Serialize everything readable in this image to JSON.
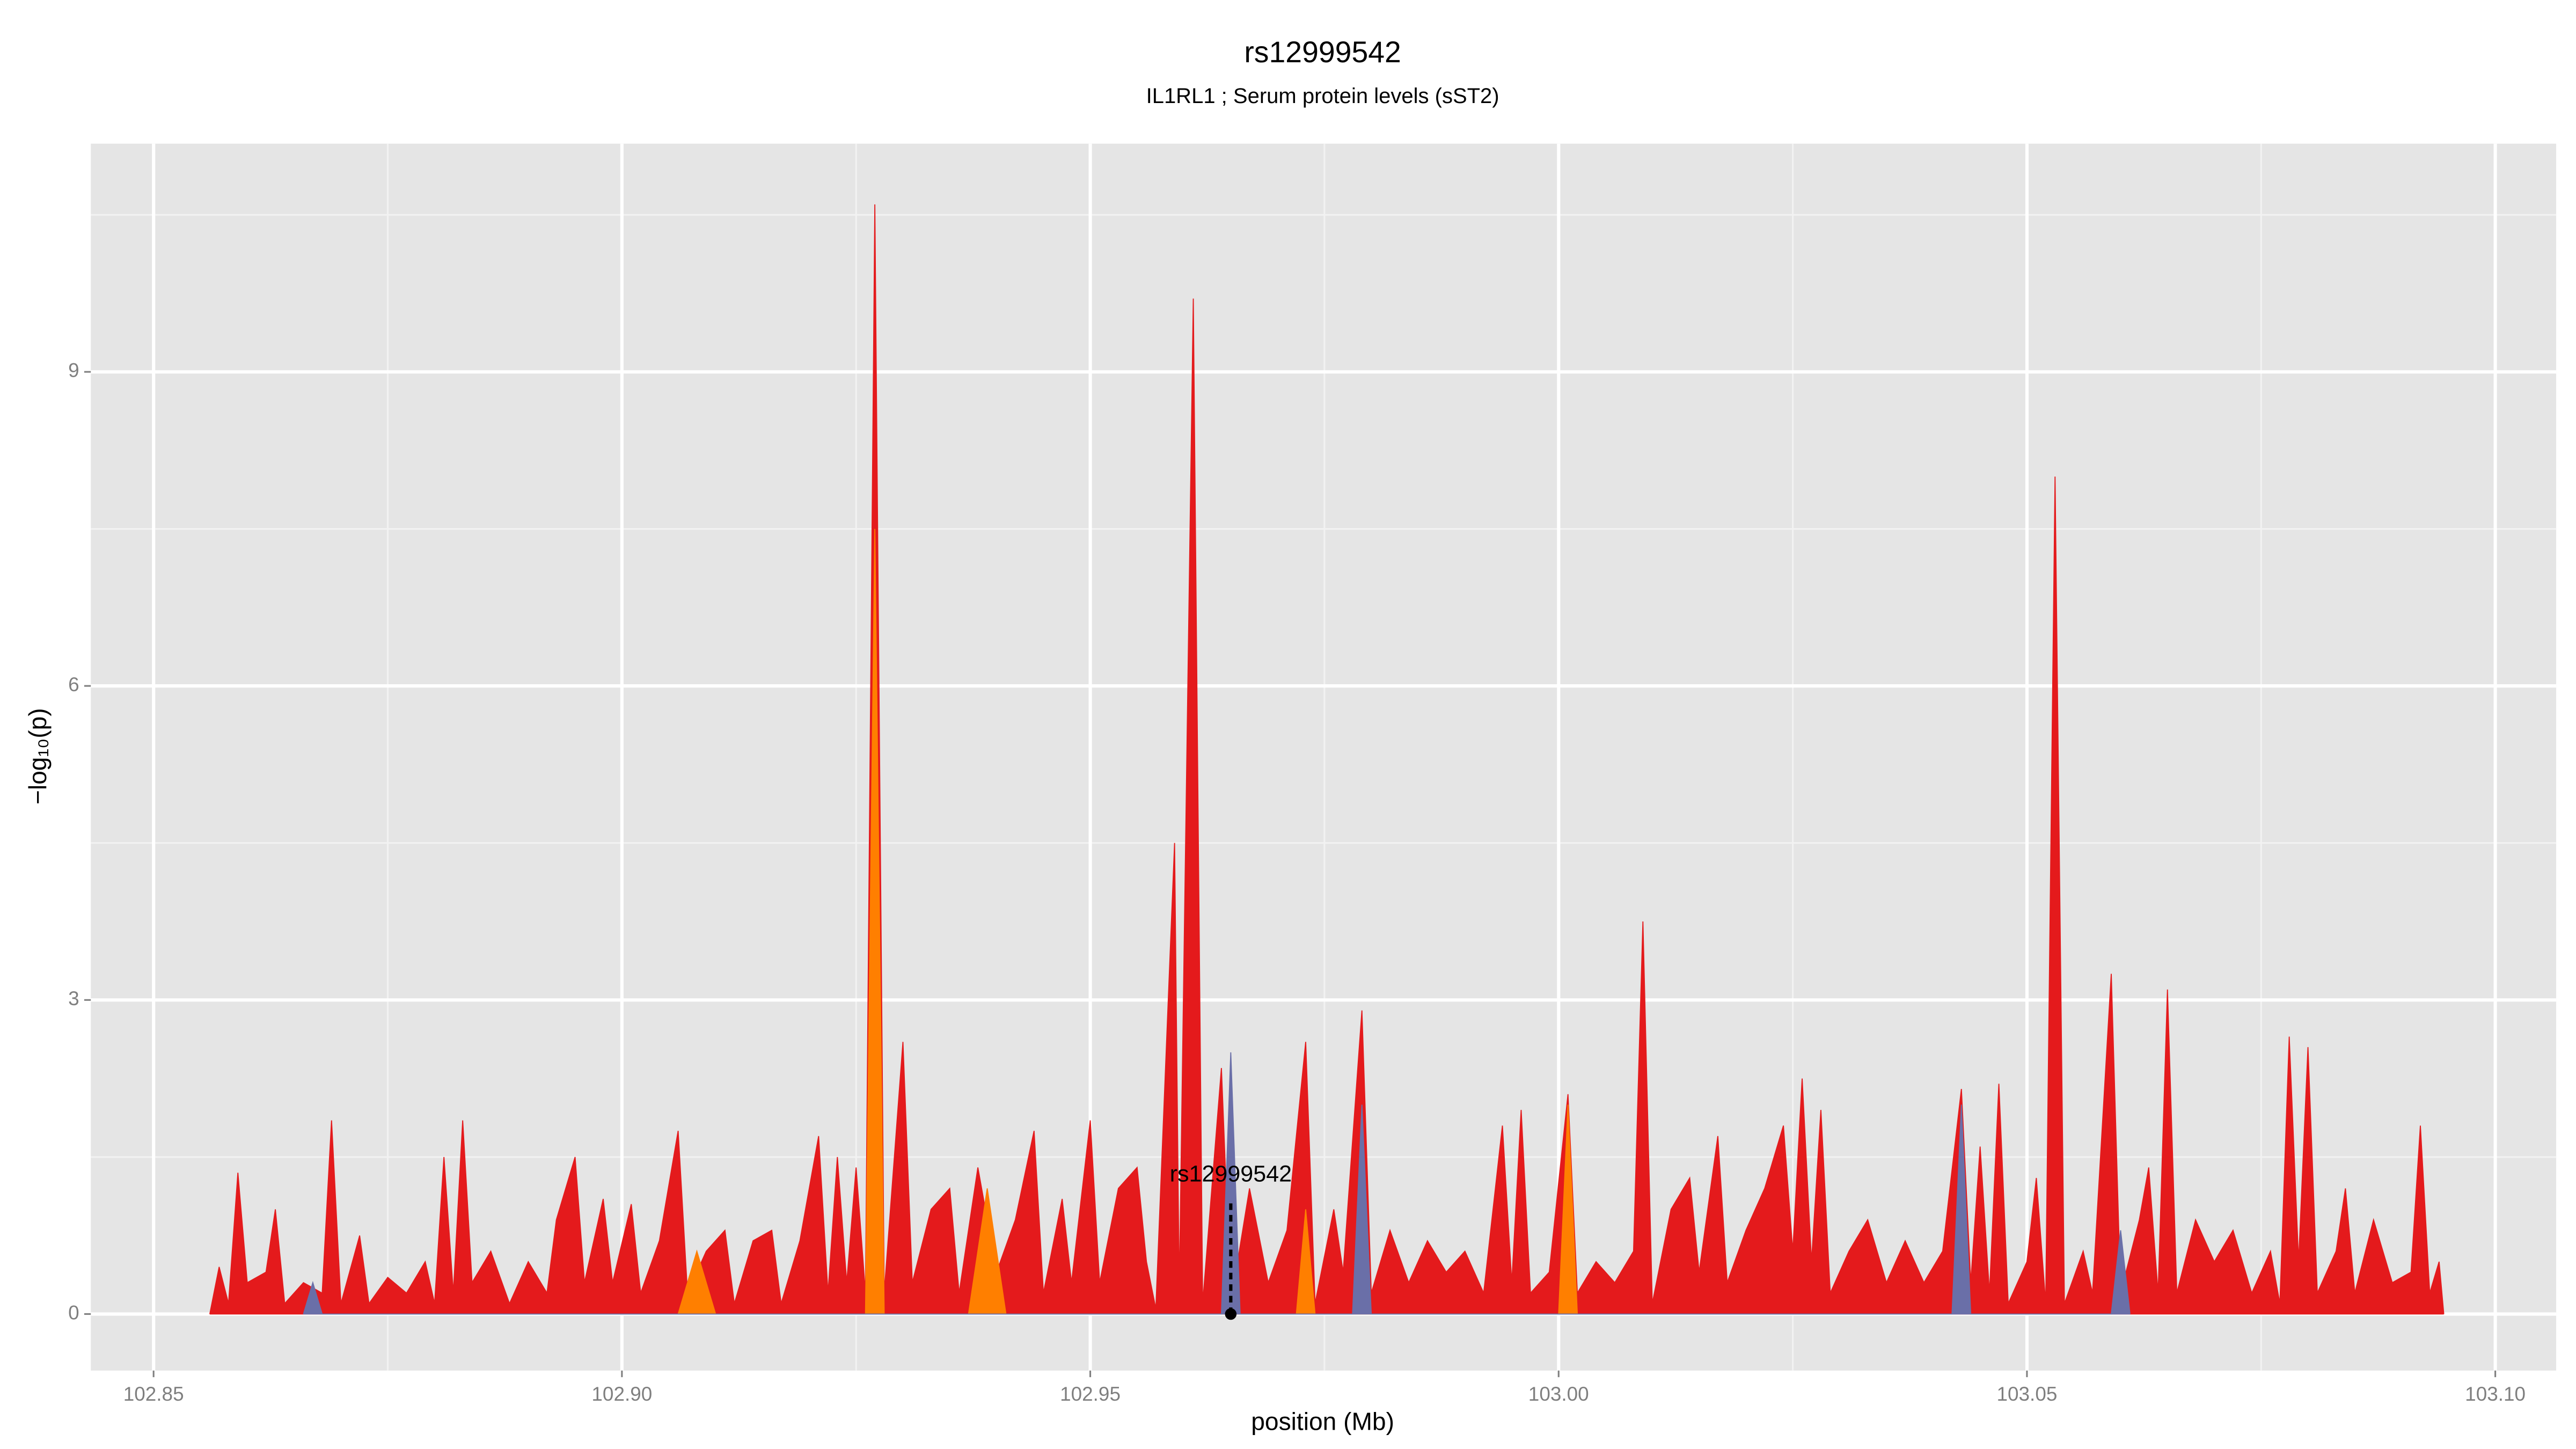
{
  "chart_data": {
    "type": "area",
    "title": "rs12999542",
    "subtitle": "IL1RL1 ; Serum protein levels (sST2)",
    "x_label": "position (Mb)",
    "y_label": "−log₁₀(p)",
    "xlim": [
      102.8433,
      103.1065
    ],
    "ylim": [
      -0.54,
      11.18
    ],
    "xticks": [
      102.85,
      {
        "value": 102.9,
        "label": "102.90"
      },
      102.95,
      {
        "value": 103.0,
        "label": "103.00"
      },
      103.05,
      {
        "value": 103.1,
        "label": "103.10"
      }
    ],
    "yticks": [
      0,
      3,
      6,
      9
    ],
    "grid": true,
    "series": [
      {
        "color": "#e41a1c",
        "x": [
          102.856,
          102.857,
          102.858,
          102.859,
          102.86,
          102.862,
          102.863,
          102.864,
          102.866,
          102.868,
          102.869,
          102.87,
          102.872,
          102.873,
          102.875,
          102.877,
          102.879,
          102.88,
          102.881,
          102.882,
          102.883,
          102.884,
          102.886,
          102.888,
          102.89,
          102.892,
          102.893,
          102.895,
          102.896,
          102.898,
          102.899,
          102.901,
          102.902,
          102.904,
          102.906,
          102.907,
          102.909,
          102.911,
          102.912,
          102.914,
          102.916,
          102.917,
          102.919,
          102.921,
          102.922,
          102.923,
          102.924,
          102.925,
          102.926,
          102.927,
          102.928,
          102.93,
          102.931,
          102.933,
          102.935,
          102.936,
          102.938,
          102.94,
          102.942,
          102.944,
          102.945,
          102.947,
          102.948,
          102.95,
          102.951,
          102.953,
          102.955,
          102.956,
          102.957,
          102.959,
          102.9595,
          102.961,
          102.962,
          102.964,
          102.965,
          102.967,
          102.969,
          102.971,
          102.973,
          102.974,
          102.976,
          102.977,
          102.979,
          102.98,
          102.982,
          102.984,
          102.986,
          102.988,
          102.99,
          102.992,
          102.994,
          102.995,
          102.996,
          102.997,
          102.999,
          103.001,
          103.002,
          103.004,
          103.006,
          103.008,
          103.009,
          103.01,
          103.012,
          103.014,
          103.015,
          103.017,
          103.018,
          103.02,
          103.022,
          103.024,
          103.025,
          103.026,
          103.027,
          103.028,
          103.029,
          103.031,
          103.033,
          103.035,
          103.037,
          103.039,
          103.041,
          103.043,
          103.044,
          103.045,
          103.046,
          103.047,
          103.048,
          103.05,
          103.051,
          103.052,
          103.053,
          103.054,
          103.056,
          103.057,
          103.059,
          103.06,
          103.062,
          103.063,
          103.064,
          103.065,
          103.066,
          103.068,
          103.07,
          103.072,
          103.074,
          103.076,
          103.077,
          103.078,
          103.079,
          103.08,
          103.081,
          103.083,
          103.084,
          103.085,
          103.087,
          103.089,
          103.091,
          103.092,
          103.093,
          103.094,
          103.0945
        ],
        "values": [
          0,
          0.45,
          0.1,
          1.35,
          0.3,
          0.4,
          1.0,
          0.1,
          0.3,
          0.2,
          1.85,
          0.1,
          0.75,
          0.1,
          0.35,
          0.2,
          0.5,
          0.1,
          1.5,
          0.2,
          1.85,
          0.3,
          0.6,
          0.1,
          0.5,
          0.2,
          0.9,
          1.5,
          0.3,
          1.1,
          0.3,
          1.05,
          0.2,
          0.7,
          1.75,
          0.2,
          0.6,
          0.8,
          0.1,
          0.7,
          0.8,
          0.1,
          0.7,
          1.7,
          0.2,
          1.5,
          0.3,
          1.4,
          0.2,
          10.6,
          0.2,
          2.6,
          0.3,
          1.0,
          1.2,
          0.2,
          1.4,
          0.4,
          0.9,
          1.75,
          0.2,
          1.1,
          0.3,
          1.85,
          0.3,
          1.2,
          1.4,
          0.5,
          0.05,
          4.5,
          0.2,
          9.7,
          0.1,
          2.35,
          0.1,
          1.2,
          0.3,
          0.8,
          2.6,
          0.1,
          1.0,
          0.4,
          2.9,
          0.2,
          0.8,
          0.3,
          0.7,
          0.4,
          0.6,
          0.2,
          1.8,
          0.3,
          1.95,
          0.2,
          0.4,
          2.1,
          0.2,
          0.5,
          0.3,
          0.6,
          3.75,
          0.1,
          1.0,
          1.3,
          0.4,
          1.7,
          0.3,
          0.8,
          1.2,
          1.8,
          0.6,
          2.25,
          0.5,
          1.95,
          0.2,
          0.6,
          0.9,
          0.3,
          0.7,
          0.3,
          0.6,
          2.15,
          0.3,
          1.6,
          0.2,
          2.2,
          0.1,
          0.5,
          1.3,
          0.1,
          8.0,
          0.1,
          0.6,
          0.2,
          3.25,
          0.2,
          0.9,
          1.4,
          0.2,
          3.1,
          0.2,
          0.9,
          0.5,
          0.8,
          0.2,
          0.6,
          0.1,
          2.65,
          0.5,
          2.55,
          0.2,
          0.6,
          1.2,
          0.2,
          0.9,
          0.3,
          0.4,
          1.8,
          0.2,
          0.5,
          0
        ]
      },
      {
        "color": "#ff7f00",
        "x": [
          102.906,
          102.908,
          102.91,
          102.926,
          102.927,
          102.928,
          102.937,
          102.939,
          102.941,
          102.972,
          102.973,
          102.974,
          103.0,
          103.001,
          103.002
        ],
        "values": [
          0,
          0.6,
          0,
          0,
          7.5,
          0,
          0,
          1.2,
          0,
          0,
          1.0,
          0,
          0,
          2.0,
          0
        ]
      },
      {
        "color": "#6a6fa8",
        "x": [
          102.866,
          102.867,
          102.868,
          102.964,
          102.965,
          102.966,
          102.978,
          102.979,
          102.98,
          103.042,
          103.043,
          103.044,
          103.059,
          103.06,
          103.061
        ],
        "values": [
          0,
          0.3,
          0,
          0,
          2.5,
          0,
          0,
          2.0,
          0,
          0,
          2.0,
          0,
          0,
          0.8,
          0
        ]
      }
    ],
    "highlight": {
      "label": "rs12999542",
      "x": 102.965,
      "y": 0
    }
  }
}
